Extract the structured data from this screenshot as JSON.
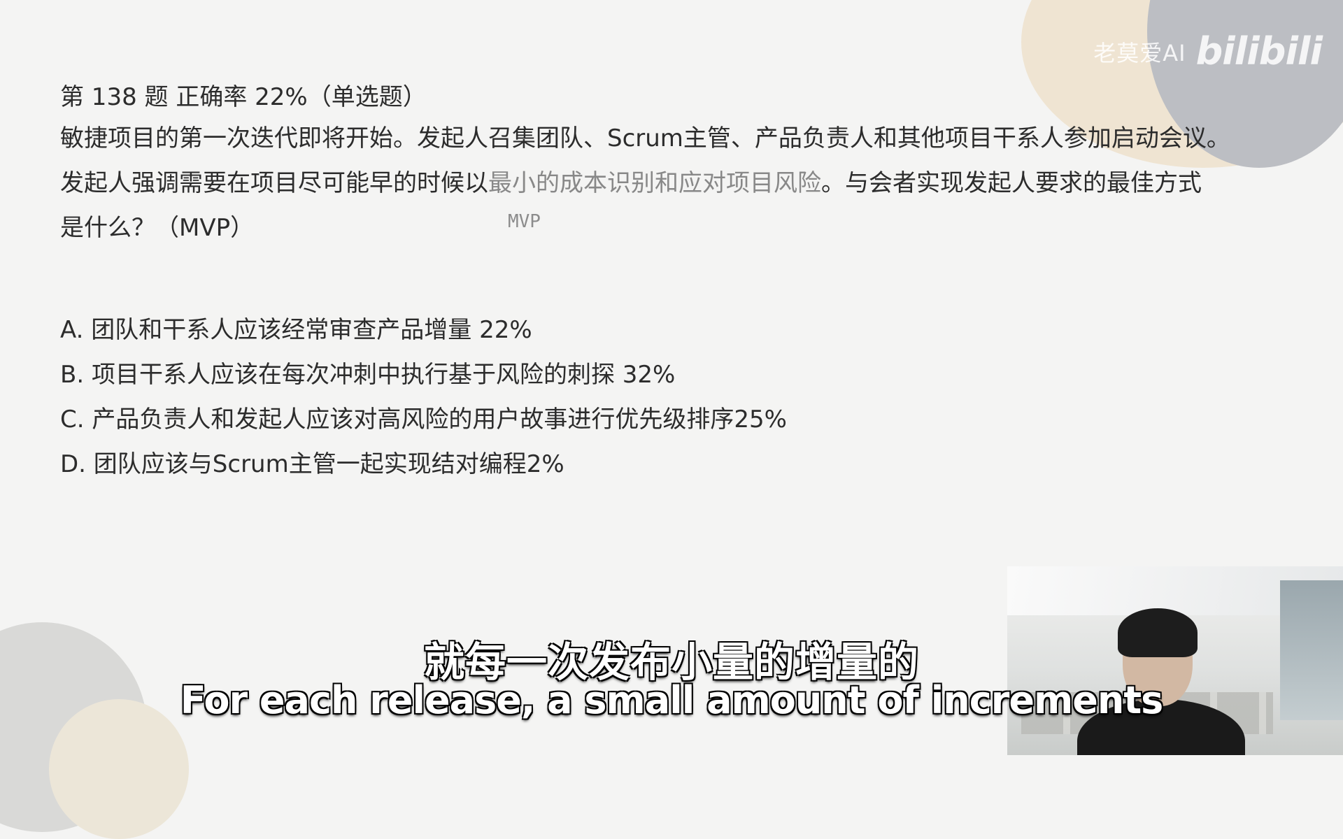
{
  "watermark": {
    "user": "老莫爱AI",
    "logo": "bilibili"
  },
  "question": {
    "header": "第 138 题 正确率 22%（单选题）",
    "line1": "敏捷项目的第一次迭代即将开始。发起人召集团队、Scrum主管、产品负责人和其他项目干系人参加启动会议。",
    "line2_a": "发起人强调需要在项目尽可能早的时候以",
    "line2_highlight": "最小的成本识别和应对项目风险",
    "line2_b": "。与会者实现发起人要求的最佳方式",
    "line3": "是什么？（MVP）",
    "annotation": "MVP"
  },
  "options": [
    {
      "text": "A. 团队和干系人应该经常审查产品增量 22%"
    },
    {
      "text": "B. 项目干系人应该在每次冲刺中执行基于风险的刺探 32%"
    },
    {
      "text": "C. 产品负责人和发起人应该对高风险的用户故事进行优先级排序25%"
    },
    {
      "text": "D. 团队应该与Scrum主管一起实现结对编程2%"
    }
  ],
  "subtitles": {
    "chinese": "就每一次发布小量的增量的",
    "english": "For each release, a small amount of increments"
  }
}
